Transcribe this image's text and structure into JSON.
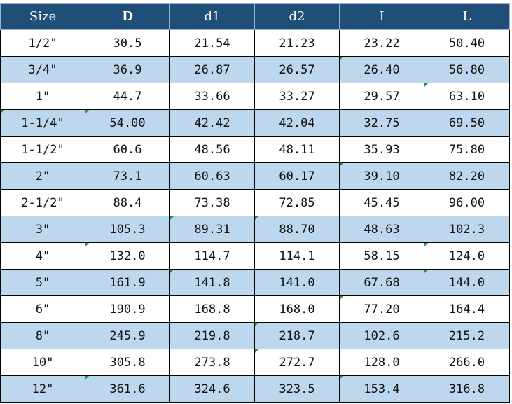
{
  "table": {
    "headers": [
      "Size",
      "D",
      "d1",
      "d2",
      "I",
      "L"
    ],
    "rows": [
      [
        "1/2\"",
        "30.5",
        "21.54",
        "21.23",
        "23.22",
        "50.40"
      ],
      [
        "3/4\"",
        "36.9",
        "26.87",
        "26.57",
        "26.40",
        "56.80"
      ],
      [
        "1\"",
        "44.7",
        "33.66",
        "33.27",
        "29.57",
        "63.10"
      ],
      [
        "1-1/4\"",
        "54.00",
        "42.42",
        "42.04",
        "32.75",
        "69.50"
      ],
      [
        "1-1/2\"",
        "60.6",
        "48.56",
        "48.11",
        "35.93",
        "75.80"
      ],
      [
        "2\"",
        "73.1",
        "60.63",
        "60.17",
        "39.10",
        "82.20"
      ],
      [
        "2-1/2\"",
        "88.4",
        "73.38",
        "72.85",
        "45.45",
        "96.00"
      ],
      [
        "3\"",
        "105.3",
        "89.31",
        "88.70",
        "48.63",
        "102.3"
      ],
      [
        "4\"",
        "132.0",
        "114.7",
        "114.1",
        "58.15",
        "124.0"
      ],
      [
        "5\"",
        "161.9",
        "141.8",
        "141.0",
        "67.68",
        "144.0"
      ],
      [
        "6\"",
        "190.9",
        "168.8",
        "168.0",
        "77.20",
        "164.4"
      ],
      [
        "8\"",
        "245.9",
        "219.8",
        "218.7",
        "102.6",
        "215.2"
      ],
      [
        "10\"",
        "305.8",
        "273.8",
        "272.7",
        "128.0",
        "266.0"
      ],
      [
        "12\"",
        "361.6",
        "324.6",
        "323.5",
        "153.4",
        "316.8"
      ]
    ]
  },
  "colors": {
    "header_bg": "#1f4e79",
    "header_text": "#ffffff",
    "alt_row_bg": "#bdd7ee",
    "row_bg": "#ffffff",
    "corner_tick": "#1e9a3a"
  }
}
